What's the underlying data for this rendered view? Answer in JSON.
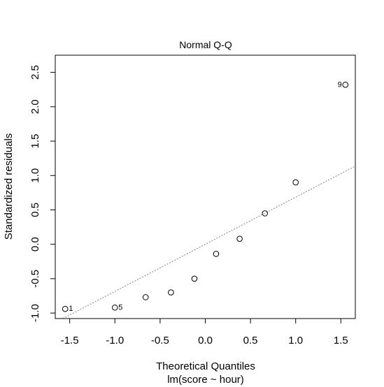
{
  "chart_data": {
    "type": "scatter",
    "title": "Normal Q-Q",
    "xlabel": "Theoretical Quantiles",
    "subtitle": "lm(score ~ hour)",
    "ylabel": "Standardized residuals",
    "xlim": [
      -1.66,
      1.66
    ],
    "ylim": [
      -1.08,
      2.75
    ],
    "x_ticks": [
      -1.5,
      -1.0,
      -0.5,
      0.0,
      0.5,
      1.0,
      1.5
    ],
    "x_tick_labels": [
      "-1.5",
      "-1.0",
      "-0.5",
      "0.0",
      "0.5",
      "1.0",
      "1.5"
    ],
    "y_ticks": [
      -1.0,
      -0.5,
      0.0,
      0.5,
      1.0,
      1.5,
      2.0,
      2.5
    ],
    "y_tick_labels": [
      "-1.0",
      "-0.5",
      "0.0",
      "0.5",
      "1.0",
      "1.5",
      "2.0",
      "2.5"
    ],
    "points": [
      {
        "x": -1.55,
        "y": -0.94,
        "label": "1"
      },
      {
        "x": -1.0,
        "y": -0.92,
        "label": "5"
      },
      {
        "x": -0.66,
        "y": -0.77,
        "label": ""
      },
      {
        "x": -0.38,
        "y": -0.7,
        "label": ""
      },
      {
        "x": -0.12,
        "y": -0.5,
        "label": ""
      },
      {
        "x": 0.12,
        "y": -0.14,
        "label": ""
      },
      {
        "x": 0.38,
        "y": 0.08,
        "label": ""
      },
      {
        "x": 0.66,
        "y": 0.45,
        "label": ""
      },
      {
        "x": 1.0,
        "y": 0.9,
        "label": ""
      },
      {
        "x": 1.55,
        "y": 2.32,
        "label": "9"
      }
    ],
    "reference_line": {
      "slope": 0.685,
      "intercept": 0.0,
      "style": "dotted"
    },
    "grid": false,
    "legend": "none",
    "colors": {
      "points": "#000000",
      "line": "#808080",
      "axes": "#000000"
    }
  }
}
